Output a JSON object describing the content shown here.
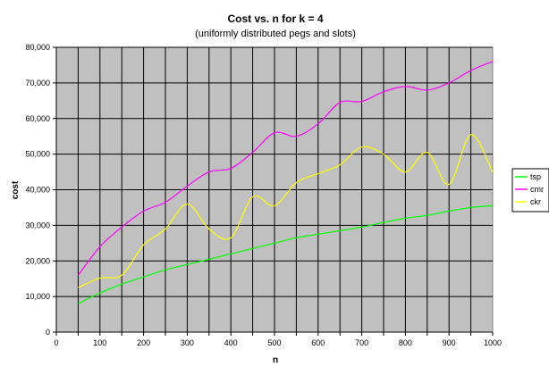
{
  "chart_data": {
    "type": "line",
    "title": "Cost vs. n for k = 4",
    "subtitle": "(uniformly distributed pegs and slots)",
    "xlabel": "n",
    "ylabel": "cost",
    "xlim": [
      0,
      1000
    ],
    "ylim": [
      0,
      80000
    ],
    "x_ticks": [
      "0",
      "100",
      "200",
      "300",
      "400",
      "500",
      "600",
      "700",
      "800",
      "900",
      "1000"
    ],
    "y_ticks": [
      "0",
      "10,000",
      "20,000",
      "30,000",
      "40,000",
      "50,000",
      "60,000",
      "70,000",
      "80,000"
    ],
    "grid": true,
    "legend_position": "right",
    "x": [
      50,
      100,
      150,
      200,
      250,
      300,
      350,
      400,
      450,
      500,
      550,
      600,
      650,
      700,
      750,
      800,
      850,
      900,
      950,
      1000
    ],
    "series": [
      {
        "name": "tsp",
        "color": "#00ff00",
        "values": [
          8000,
          11000,
          13500,
          15500,
          17500,
          19000,
          20500,
          22000,
          23500,
          25000,
          26500,
          27500,
          28500,
          29500,
          30800,
          32000,
          32800,
          34000,
          35000,
          35500
        ]
      },
      {
        "name": "cmr",
        "color": "#ff00ff",
        "values": [
          16000,
          24000,
          29500,
          34000,
          36500,
          41000,
          45000,
          46000,
          50500,
          56000,
          55000,
          58500,
          64500,
          64800,
          67500,
          69000,
          68000,
          70000,
          73500,
          76000
        ]
      },
      {
        "name": "ckr",
        "color": "#ffff00",
        "values": [
          12500,
          15200,
          16000,
          24500,
          29000,
          36000,
          29000,
          26500,
          38000,
          35500,
          42000,
          44500,
          47000,
          52000,
          50000,
          45000,
          50500,
          41500,
          55500,
          45000
        ]
      }
    ]
  }
}
